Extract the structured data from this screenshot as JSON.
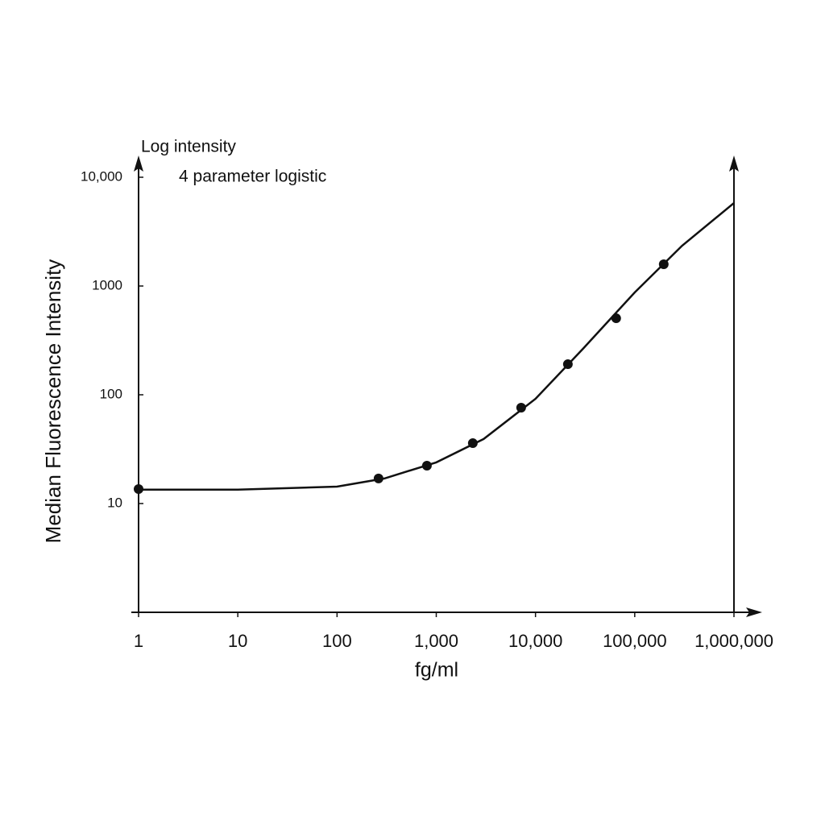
{
  "chart_data": {
    "type": "scatter",
    "annotations": [
      "Log intensity",
      "4 parameter logistic"
    ],
    "x_label": "fg/ml",
    "y_label": "Median Fluorescence Intensity",
    "log_x": true,
    "log_y": true,
    "xlim": [
      1,
      1000000
    ],
    "ylim": [
      1,
      10000
    ],
    "xticks": [
      1,
      10,
      100,
      {
        "value": 1000,
        "label": "1,000"
      },
      {
        "value": 10000,
        "label": "10,000"
      },
      {
        "value": 100000,
        "label": "100,000"
      },
      {
        "value": 1000000,
        "label": "1,000,000"
      }
    ],
    "yticks": [
      10,
      100,
      1000,
      {
        "value": 10000,
        "label": "10,000"
      }
    ],
    "series": [
      {
        "style": "line",
        "color": "#111111",
        "x": [
          1,
          10,
          100,
          300,
          1000,
          3000,
          10000,
          30000,
          100000,
          300000,
          1000000
        ],
        "values": [
          13.4,
          13.4,
          14.3,
          17.0,
          23.9,
          39.2,
          91.8,
          264,
          873,
          2345,
          5790
        ]
      },
      {
        "style": "points",
        "color": "#111111",
        "x": [
          1,
          262,
          805,
          2335,
          7170,
          21200,
          65000,
          196000
        ],
        "values": [
          13.6,
          17.0,
          22.3,
          35.9,
          76.1,
          191,
          505,
          1585
        ]
      }
    ]
  }
}
